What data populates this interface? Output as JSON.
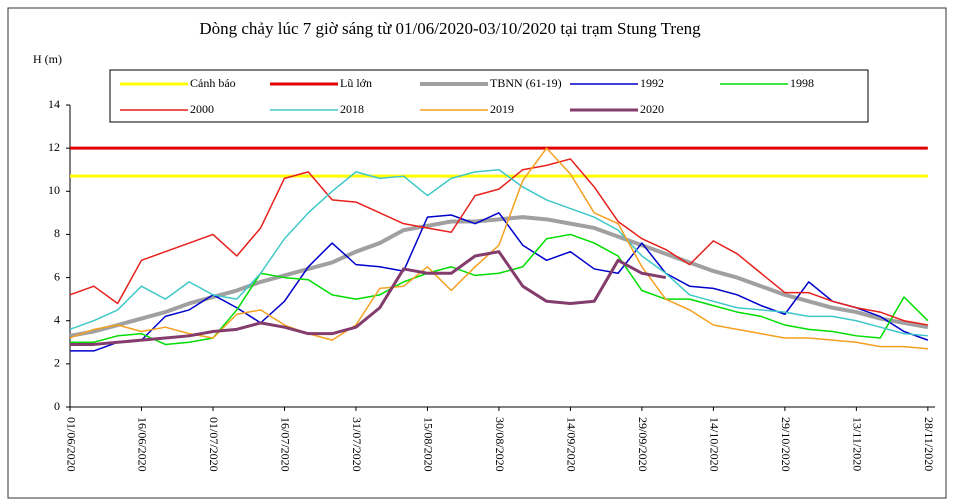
{
  "chart_data": {
    "type": "line",
    "title": "Dòng chảy lúc 7 giờ sáng từ 01/06/2020-03/10/2020 tại trạm Stung Treng",
    "y_label": "H (m)",
    "categories": [
      "01/06/2020",
      null,
      null,
      "16/06/2020",
      null,
      null,
      "01/07/2020",
      null,
      null,
      "16/07/2020",
      null,
      null,
      "31/07/2020",
      null,
      null,
      "15/08/2020",
      null,
      null,
      "30/08/2020",
      null,
      null,
      "14/09/2020",
      null,
      null,
      "29/09/2020",
      null,
      null,
      "14/10/2020",
      null,
      null,
      "29/10/2020",
      null,
      null,
      "13/11/2020",
      null,
      null,
      "28/11/2020"
    ],
    "ylim": [
      0,
      14
    ],
    "yticks": [
      0,
      2,
      4,
      6,
      8,
      10,
      12,
      14
    ],
    "series": [
      {
        "name": "Cảnh báo",
        "color": "#ffff00",
        "width": 3,
        "values": [
          10.7,
          10.7,
          10.7,
          10.7,
          10.7,
          10.7,
          10.7,
          10.7,
          10.7,
          10.7,
          10.7,
          10.7,
          10.7,
          10.7,
          10.7,
          10.7,
          10.7,
          10.7,
          10.7,
          10.7,
          10.7,
          10.7,
          10.7,
          10.7,
          10.7,
          10.7,
          10.7,
          10.7,
          10.7,
          10.7,
          10.7,
          10.7,
          10.7,
          10.7,
          10.7,
          10.7,
          10.7
        ]
      },
      {
        "name": "Lũ lớn",
        "color": "#e00000",
        "width": 3,
        "values": [
          12,
          12,
          12,
          12,
          12,
          12,
          12,
          12,
          12,
          12,
          12,
          12,
          12,
          12,
          12,
          12,
          12,
          12,
          12,
          12,
          12,
          12,
          12,
          12,
          12,
          12,
          12,
          12,
          12,
          12,
          12,
          12,
          12,
          12,
          12,
          12,
          12
        ]
      },
      {
        "name": "TBNN (61-19)",
        "color": "#a0a0a0",
        "width": 4,
        "values": [
          3.3,
          3.5,
          3.8,
          4.1,
          4.4,
          4.8,
          5.1,
          5.4,
          5.8,
          6.1,
          6.4,
          6.7,
          7.2,
          7.6,
          8.2,
          8.4,
          8.6,
          8.6,
          8.7,
          8.8,
          8.7,
          8.5,
          8.3,
          7.9,
          7.5,
          7.1,
          6.7,
          6.3,
          6.0,
          5.6,
          5.2,
          4.9,
          4.6,
          4.4,
          4.1,
          3.9,
          3.7
        ]
      },
      {
        "name": "1992",
        "color": "#0000cc",
        "width": 1.5,
        "values": [
          2.6,
          2.6,
          3.0,
          3.1,
          4.2,
          4.5,
          5.2,
          4.6,
          3.9,
          4.9,
          6.5,
          7.6,
          6.6,
          6.5,
          6.3,
          8.8,
          8.9,
          8.5,
          9.0,
          7.5,
          6.8,
          7.2,
          6.4,
          6.2,
          7.6,
          6.2,
          5.6,
          5.5,
          5.2,
          4.7,
          4.3,
          5.8,
          4.9,
          4.6,
          4.2,
          3.5,
          3.1
        ]
      },
      {
        "name": "1998",
        "color": "#00dd00",
        "width": 1.5,
        "values": [
          3.0,
          3.0,
          3.3,
          3.4,
          2.9,
          3.0,
          3.2,
          4.5,
          6.2,
          6.0,
          5.9,
          5.2,
          5.0,
          5.2,
          5.8,
          6.2,
          6.5,
          6.1,
          6.2,
          6.5,
          7.8,
          8.0,
          7.6,
          7.0,
          5.4,
          5.0,
          5.0,
          4.7,
          4.4,
          4.2,
          3.8,
          3.6,
          3.5,
          3.3,
          3.2,
          5.1,
          4.0
        ]
      },
      {
        "name": "2000",
        "color": "#e8201c",
        "width": 1.5,
        "values": [
          5.2,
          5.6,
          4.8,
          6.8,
          7.2,
          7.6,
          8.0,
          7.0,
          8.3,
          10.6,
          10.9,
          9.6,
          9.5,
          9.0,
          8.5,
          8.3,
          8.1,
          9.8,
          10.1,
          11.0,
          11.2,
          11.5,
          10.2,
          8.6,
          7.8,
          7.3,
          6.6,
          7.7,
          7.1,
          6.2,
          5.3,
          5.3,
          4.9,
          4.6,
          4.4,
          4.0,
          3.8
        ]
      },
      {
        "name": "2018",
        "color": "#40c8c8",
        "width": 1.5,
        "values": [
          3.6,
          4.0,
          4.5,
          5.6,
          5.0,
          5.8,
          5.2,
          5.0,
          6.2,
          7.8,
          9.0,
          10.0,
          10.9,
          10.6,
          10.7,
          9.8,
          10.6,
          10.9,
          11.0,
          10.2,
          9.6,
          9.2,
          8.8,
          8.2,
          7.0,
          6.2,
          5.2,
          4.9,
          4.6,
          4.5,
          4.4,
          4.2,
          4.2,
          4.0,
          3.7,
          3.4,
          3.3
        ]
      },
      {
        "name": "2019",
        "color": "#f4a020",
        "width": 1.5,
        "values": [
          3.2,
          3.6,
          3.8,
          3.5,
          3.7,
          3.4,
          3.2,
          4.3,
          4.5,
          3.8,
          3.4,
          3.1,
          3.8,
          5.5,
          5.6,
          6.5,
          5.4,
          6.5,
          7.5,
          10.5,
          12.0,
          10.8,
          9.0,
          8.5,
          6.5,
          5.0,
          4.5,
          3.8,
          3.6,
          3.4,
          3.2,
          3.2,
          3.1,
          3.0,
          2.8,
          2.8,
          2.7
        ]
      },
      {
        "name": "2020",
        "color": "#833c6b",
        "width": 3,
        "values": [
          2.9,
          2.9,
          3.0,
          3.1,
          3.2,
          3.3,
          3.5,
          3.6,
          3.9,
          3.7,
          3.4,
          3.4,
          3.7,
          4.6,
          6.4,
          6.2,
          6.2,
          7.0,
          7.2,
          5.6,
          4.9,
          4.8,
          4.9,
          6.8,
          6.2,
          6.0,
          null,
          null,
          null,
          null,
          null,
          null,
          null,
          null,
          null,
          null,
          null
        ]
      }
    ]
  }
}
